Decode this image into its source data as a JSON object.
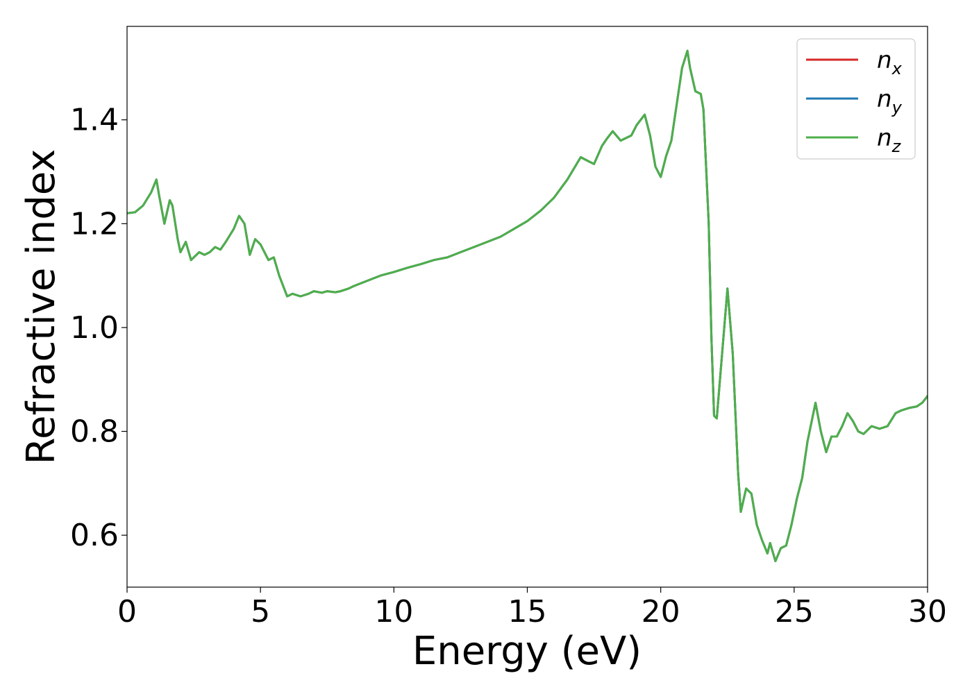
{
  "chart_data": {
    "type": "line",
    "title": "",
    "xlabel": "Energy (eV)",
    "ylabel": "Refractive index",
    "xlim": [
      0,
      30
    ],
    "ylim": [
      0.5,
      1.58
    ],
    "xticks": [
      0,
      5,
      10,
      15,
      20,
      25,
      30
    ],
    "yticks": [
      0.6,
      0.8,
      1.0,
      1.2,
      1.4
    ],
    "xtick_labels": [
      "0",
      "5",
      "10",
      "15",
      "20",
      "25",
      "30"
    ],
    "ytick_labels": [
      "0.6",
      "0.8",
      "1.0",
      "1.2",
      "1.4"
    ],
    "grid": false,
    "legend_position": "top-right",
    "x": [
      0,
      0.3,
      0.6,
      0.9,
      1.1,
      1.2,
      1.4,
      1.6,
      1.7,
      1.9,
      2.0,
      2.2,
      2.4,
      2.5,
      2.7,
      2.9,
      3.1,
      3.3,
      3.5,
      3.7,
      4.0,
      4.2,
      4.4,
      4.6,
      4.8,
      5.0,
      5.3,
      5.5,
      5.7,
      6.0,
      6.2,
      6.5,
      6.8,
      7.0,
      7.3,
      7.5,
      7.8,
      8.0,
      8.3,
      8.5,
      9.0,
      9.5,
      10.0,
      10.5,
      11.0,
      11.5,
      12.0,
      12.5,
      13.0,
      13.5,
      14.0,
      14.5,
      15.0,
      15.5,
      16.0,
      16.5,
      17.0,
      17.3,
      17.5,
      17.8,
      18.0,
      18.2,
      18.5,
      18.7,
      18.9,
      19.1,
      19.4,
      19.6,
      19.8,
      20.0,
      20.2,
      20.4,
      20.6,
      20.8,
      21.0,
      21.1,
      21.3,
      21.5,
      21.6,
      21.8,
      21.9,
      22.0,
      22.1,
      22.3,
      22.5,
      22.7,
      22.9,
      23.0,
      23.2,
      23.4,
      23.6,
      23.8,
      24.0,
      24.1,
      24.3,
      24.5,
      24.7,
      24.9,
      25.1,
      25.3,
      25.5,
      25.8,
      26.0,
      26.2,
      26.4,
      26.6,
      26.8,
      27.0,
      27.2,
      27.4,
      27.6,
      27.9,
      28.2,
      28.5,
      28.8,
      29.0,
      29.3,
      29.6,
      29.8,
      30.0
    ],
    "series": [
      {
        "name": "n_x",
        "color": "#d62728",
        "y": [
          1.22,
          1.222,
          1.235,
          1.26,
          1.285,
          1.255,
          1.2,
          1.245,
          1.235,
          1.17,
          1.145,
          1.165,
          1.13,
          1.135,
          1.145,
          1.14,
          1.145,
          1.155,
          1.15,
          1.165,
          1.19,
          1.215,
          1.2,
          1.14,
          1.17,
          1.16,
          1.13,
          1.135,
          1.1,
          1.06,
          1.065,
          1.06,
          1.065,
          1.07,
          1.067,
          1.07,
          1.068,
          1.07,
          1.075,
          1.08,
          1.09,
          1.1,
          1.107,
          1.115,
          1.122,
          1.13,
          1.135,
          1.145,
          1.155,
          1.165,
          1.175,
          1.19,
          1.205,
          1.225,
          1.25,
          1.285,
          1.328,
          1.32,
          1.315,
          1.35,
          1.365,
          1.378,
          1.36,
          1.365,
          1.37,
          1.39,
          1.41,
          1.37,
          1.31,
          1.29,
          1.33,
          1.36,
          1.43,
          1.5,
          1.533,
          1.5,
          1.455,
          1.45,
          1.42,
          1.2,
          0.98,
          0.83,
          0.825,
          0.95,
          1.075,
          0.95,
          0.72,
          0.645,
          0.69,
          0.68,
          0.62,
          0.59,
          0.565,
          0.585,
          0.55,
          0.575,
          0.58,
          0.62,
          0.67,
          0.71,
          0.78,
          0.855,
          0.8,
          0.76,
          0.79,
          0.79,
          0.81,
          0.835,
          0.82,
          0.8,
          0.795,
          0.81,
          0.805,
          0.81,
          0.835,
          0.84,
          0.845,
          0.848,
          0.855,
          0.868
        ]
      },
      {
        "name": "n_y",
        "color": "#1f77b4",
        "y": [
          1.22,
          1.222,
          1.235,
          1.26,
          1.285,
          1.255,
          1.2,
          1.245,
          1.235,
          1.17,
          1.145,
          1.165,
          1.13,
          1.135,
          1.145,
          1.14,
          1.145,
          1.155,
          1.15,
          1.165,
          1.19,
          1.215,
          1.2,
          1.14,
          1.17,
          1.16,
          1.13,
          1.135,
          1.1,
          1.06,
          1.065,
          1.06,
          1.065,
          1.07,
          1.067,
          1.07,
          1.068,
          1.07,
          1.075,
          1.08,
          1.09,
          1.1,
          1.107,
          1.115,
          1.122,
          1.13,
          1.135,
          1.145,
          1.155,
          1.165,
          1.175,
          1.19,
          1.205,
          1.225,
          1.25,
          1.285,
          1.328,
          1.32,
          1.315,
          1.35,
          1.365,
          1.378,
          1.36,
          1.365,
          1.37,
          1.39,
          1.41,
          1.37,
          1.31,
          1.29,
          1.33,
          1.36,
          1.43,
          1.5,
          1.533,
          1.5,
          1.455,
          1.45,
          1.42,
          1.2,
          0.98,
          0.83,
          0.825,
          0.95,
          1.075,
          0.95,
          0.72,
          0.645,
          0.69,
          0.68,
          0.62,
          0.59,
          0.565,
          0.585,
          0.55,
          0.575,
          0.58,
          0.62,
          0.67,
          0.71,
          0.78,
          0.855,
          0.8,
          0.76,
          0.79,
          0.79,
          0.81,
          0.835,
          0.82,
          0.8,
          0.795,
          0.81,
          0.805,
          0.81,
          0.835,
          0.84,
          0.845,
          0.848,
          0.855,
          0.868
        ]
      },
      {
        "name": "n_z",
        "color": "#4daf4a",
        "y": [
          1.22,
          1.222,
          1.235,
          1.26,
          1.285,
          1.255,
          1.2,
          1.245,
          1.235,
          1.17,
          1.145,
          1.165,
          1.13,
          1.135,
          1.145,
          1.14,
          1.145,
          1.155,
          1.15,
          1.165,
          1.19,
          1.215,
          1.2,
          1.14,
          1.17,
          1.16,
          1.13,
          1.135,
          1.1,
          1.06,
          1.065,
          1.06,
          1.065,
          1.07,
          1.067,
          1.07,
          1.068,
          1.07,
          1.075,
          1.08,
          1.09,
          1.1,
          1.107,
          1.115,
          1.122,
          1.13,
          1.135,
          1.145,
          1.155,
          1.165,
          1.175,
          1.19,
          1.205,
          1.225,
          1.25,
          1.285,
          1.328,
          1.32,
          1.315,
          1.35,
          1.365,
          1.378,
          1.36,
          1.365,
          1.37,
          1.39,
          1.41,
          1.37,
          1.31,
          1.29,
          1.33,
          1.36,
          1.43,
          1.5,
          1.533,
          1.5,
          1.455,
          1.45,
          1.42,
          1.2,
          0.98,
          0.83,
          0.825,
          0.95,
          1.075,
          0.95,
          0.72,
          0.645,
          0.69,
          0.68,
          0.62,
          0.59,
          0.565,
          0.585,
          0.55,
          0.575,
          0.58,
          0.62,
          0.67,
          0.71,
          0.78,
          0.855,
          0.8,
          0.76,
          0.79,
          0.79,
          0.81,
          0.835,
          0.82,
          0.8,
          0.795,
          0.81,
          0.805,
          0.81,
          0.835,
          0.84,
          0.845,
          0.848,
          0.855,
          0.868
        ]
      }
    ],
    "legend": [
      {
        "base": "n",
        "sub": "x",
        "color": "#d62728"
      },
      {
        "base": "n",
        "sub": "y",
        "color": "#1f77b4"
      },
      {
        "base": "n",
        "sub": "z",
        "color": "#4daf4a"
      }
    ]
  }
}
